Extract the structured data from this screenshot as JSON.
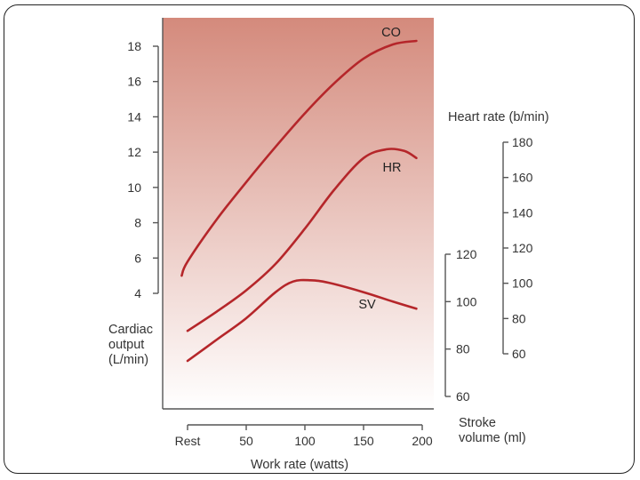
{
  "chart_data": {
    "type": "line",
    "title": "",
    "x": {
      "label": "Work rate (watts)",
      "categories": [
        "Rest",
        "50",
        "100",
        "150",
        "200"
      ],
      "values": [
        0,
        50,
        100,
        150,
        200
      ]
    },
    "axes": {
      "left": {
        "label_lines": [
          "Cardiac",
          "output",
          "(L/min)"
        ],
        "range": [
          4,
          18
        ],
        "ticks": [
          4,
          6,
          8,
          10,
          12,
          14,
          16,
          18
        ]
      },
      "heart_rate": {
        "label": "Heart rate (b/min)",
        "range": [
          60,
          180
        ],
        "ticks": [
          60,
          80,
          100,
          120,
          140,
          160,
          180
        ]
      },
      "stroke_volume": {
        "label_lines": [
          "Stroke",
          "volume (ml)"
        ],
        "range": [
          60,
          120
        ],
        "ticks": [
          60,
          80,
          100,
          120
        ]
      }
    },
    "series": [
      {
        "name": "CO",
        "axis": "left",
        "color": "#b5262a",
        "points": [
          [
            -5,
            5.0
          ],
          [
            0,
            5.8
          ],
          [
            25,
            8.2
          ],
          [
            50,
            10.3
          ],
          [
            75,
            12.3
          ],
          [
            100,
            14.2
          ],
          [
            125,
            15.9
          ],
          [
            150,
            17.3
          ],
          [
            175,
            18.1
          ],
          [
            195,
            18.3
          ]
        ]
      },
      {
        "name": "HR",
        "axis": "heart_rate",
        "color": "#b5262a",
        "points": [
          [
            0,
            73
          ],
          [
            25,
            84
          ],
          [
            50,
            96
          ],
          [
            75,
            111
          ],
          [
            100,
            131
          ],
          [
            125,
            153
          ],
          [
            150,
            171
          ],
          [
            170,
            176
          ],
          [
            185,
            175
          ],
          [
            195,
            171
          ]
        ]
      },
      {
        "name": "SV",
        "axis": "stroke_volume",
        "color": "#b5262a",
        "points": [
          [
            0,
            75
          ],
          [
            25,
            84
          ],
          [
            50,
            93
          ],
          [
            75,
            104
          ],
          [
            90,
            108.5
          ],
          [
            105,
            109
          ],
          [
            120,
            108
          ],
          [
            150,
            104
          ],
          [
            175,
            100
          ],
          [
            195,
            97
          ]
        ]
      }
    ],
    "background_gradient": [
      "#d48a7c",
      "#ffffff"
    ],
    "grid": false,
    "legend": "inline"
  }
}
